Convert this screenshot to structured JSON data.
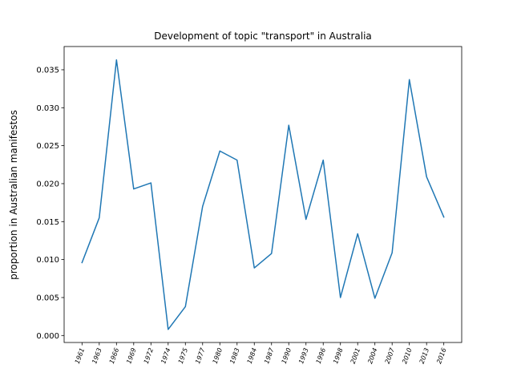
{
  "chart_data": {
    "type": "line",
    "title": "Development of topic \"transport\" in Australia",
    "xlabel": "",
    "ylabel": "proportion in Australian manifestos",
    "categories": [
      "1961",
      "1963",
      "1966",
      "1969",
      "1972",
      "1974",
      "1975",
      "1977",
      "1980",
      "1983",
      "1984",
      "1987",
      "1990",
      "1993",
      "1996",
      "1998",
      "2001",
      "2004",
      "2007",
      "2010",
      "2013",
      "2016"
    ],
    "series": [
      {
        "values": [
          0.0096,
          0.0155,
          0.0363,
          0.0193,
          0.0201,
          0.0008,
          0.0038,
          0.017,
          0.0243,
          0.0231,
          0.0089,
          0.0108,
          0.0277,
          0.0153,
          0.0231,
          0.005,
          0.0134,
          0.0049,
          0.0109,
          0.0337,
          0.0209,
          0.0156
        ],
        "color": "#1f77b4"
      }
    ],
    "yticks": [
      "0.000",
      "0.005",
      "0.010",
      "0.015",
      "0.020",
      "0.025",
      "0.030",
      "0.035"
    ],
    "ylim": [
      -0.00092,
      0.03806
    ],
    "grid": false,
    "legend": "none"
  }
}
